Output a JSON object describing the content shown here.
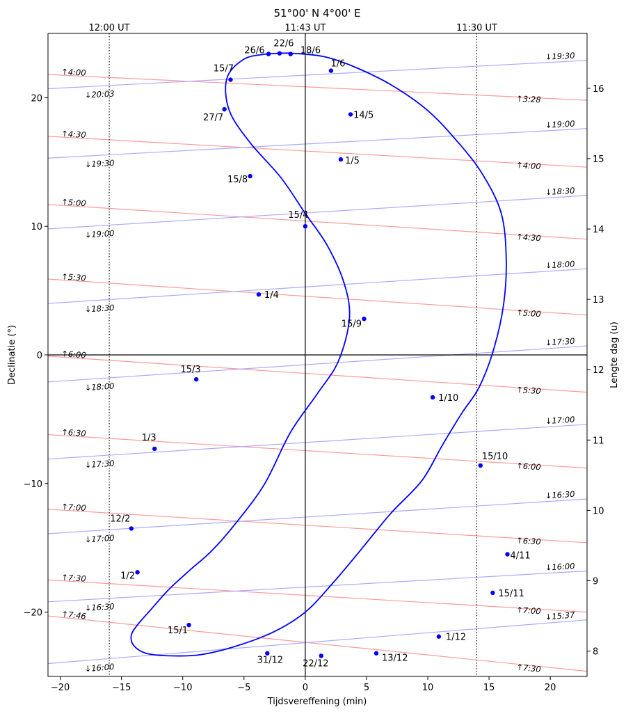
{
  "chart_data": {
    "type": "line",
    "title": "51°00' N 4°00' E",
    "xlabel": "Tijdsvereffening (min)",
    "ylabel": "Declinatie (°)",
    "y2label": "Lengte dag (u)",
    "xlim": [
      -21,
      23
    ],
    "ylim": [
      -25,
      25
    ],
    "y2lim": [
      7.64,
      16.78
    ],
    "xticks": [
      -20,
      -15,
      -10,
      -5,
      0,
      5,
      10,
      15,
      20
    ],
    "yticks": [
      -20,
      -10,
      0,
      10,
      20
    ],
    "y2ticks": [
      8,
      9,
      10,
      11,
      12,
      13,
      14,
      15,
      16
    ],
    "top_labels": [
      {
        "x": -16,
        "label": "12:00 UT"
      },
      {
        "x": 0,
        "label": "11:43 UT"
      },
      {
        "x": 14,
        "label": "11:30 UT"
      }
    ],
    "series": [
      {
        "color": "#0000ff",
        "x": [
          -3.2,
          -5.0,
          -6.4,
          -6.2,
          -4.5,
          -2.0,
          0.0,
          1.8,
          3.2,
          3.6,
          2.7,
          1.0,
          -1.2,
          -3.3,
          -5.6,
          -7.6,
          -9.5,
          -11.2,
          -12.6,
          -13.7,
          -14.2,
          -14.0,
          -13.0,
          -11.0,
          -8.5,
          -5.5,
          -2.5,
          0.0,
          2.2,
          4.5,
          7.0,
          9.5,
          11.2,
          12.8,
          14.2,
          15.4,
          16.2,
          16.4,
          16.0,
          14.5,
          12.5,
          10.0,
          7.0,
          4.0,
          1.5,
          -1.0,
          -2.2,
          -3.2
        ],
        "y": [
          23.4,
          23.0,
          21.5,
          19.0,
          16.5,
          13.8,
          11.0,
          8.5,
          5.5,
          2.8,
          -0.5,
          -3.0,
          -6.0,
          -10.0,
          -13.0,
          -15.2,
          -16.8,
          -18.3,
          -19.8,
          -21.0,
          -21.8,
          -22.6,
          -23.2,
          -23.4,
          -23.3,
          -22.6,
          -21.5,
          -20.0,
          -17.8,
          -15.2,
          -12.3,
          -9.8,
          -7.0,
          -4.5,
          -2.5,
          0.5,
          4.0,
          7.5,
          11.0,
          14.0,
          16.5,
          19.0,
          21.0,
          22.4,
          23.2,
          23.45,
          23.45,
          23.4
        ],
        "points": [
          {
            "label": "1/6",
            "x": 2.1,
            "y": 22.1
          },
          {
            "label": "14/5",
            "x": 3.7,
            "y": 18.7
          },
          {
            "label": "1/5",
            "x": 2.9,
            "y": 15.2
          },
          {
            "label": "15/4",
            "x": 0.0,
            "y": 10.0
          },
          {
            "label": "1/4",
            "x": -3.8,
            "y": 4.7
          },
          {
            "label": "15/3",
            "x": -8.9,
            "y": -1.9
          },
          {
            "label": "1/3",
            "x": -12.3,
            "y": -7.3
          },
          {
            "label": "12/2",
            "x": -14.2,
            "y": -13.5
          },
          {
            "label": "1/2",
            "x": -13.7,
            "y": -16.9
          },
          {
            "label": "15/1",
            "x": -9.5,
            "y": -21.0
          },
          {
            "label": "31/12",
            "x": -3.1,
            "y": -23.2
          },
          {
            "label": "22/12",
            "x": 1.3,
            "y": -23.4
          },
          {
            "label": "13/12",
            "x": 5.8,
            "y": -23.2
          },
          {
            "label": "1/12",
            "x": 10.9,
            "y": -21.9
          },
          {
            "label": "15/11",
            "x": 15.3,
            "y": -18.5
          },
          {
            "label": "4/11",
            "x": 16.5,
            "y": -15.5
          },
          {
            "label": "15/10",
            "x": 14.3,
            "y": -8.6
          },
          {
            "label": "1/10",
            "x": 10.4,
            "y": -3.3
          },
          {
            "label": "15/9",
            "x": 4.8,
            "y": 2.8
          },
          {
            "label": "15/8",
            "x": -4.5,
            "y": 13.9
          },
          {
            "label": "27/7",
            "x": -6.6,
            "y": 19.1
          },
          {
            "label": "15/7",
            "x": -6.1,
            "y": 21.4
          },
          {
            "label": "26/6",
            "x": -3.0,
            "y": 23.4
          },
          {
            "label": "22/6",
            "x": -2.1,
            "y": 23.45
          },
          {
            "label": "18/6",
            "x": -1.2,
            "y": 23.4
          }
        ]
      }
    ],
    "sunrise_lines": {
      "color": "#ff9999",
      "lines": [
        {
          "left_label": "↑4:00",
          "right_label": "↑3:28",
          "y_left": 21.8,
          "y_right": 19.8
        },
        {
          "left_label": "↑4:30",
          "right_label": "↑4:00",
          "y_left": 17.0,
          "y_right": 14.6
        },
        {
          "left_label": "↑5:00",
          "right_label": "↑4:30",
          "y_left": 11.7,
          "y_right": 9.0
        },
        {
          "left_label": "↑5:30",
          "right_label": "↑5:00",
          "y_left": 5.9,
          "y_right": 3.1
        },
        {
          "left_label": "↑6:00",
          "right_label": "↑5:30",
          "y_left": -0.1,
          "y_right": -2.9
        },
        {
          "left_label": "↑6:30",
          "right_label": "↑6:00",
          "y_left": -6.2,
          "y_right": -8.8
        },
        {
          "left_label": "↑7:00",
          "right_label": "↑6:30",
          "y_left": -12.0,
          "y_right": -14.6
        },
        {
          "left_label": "↑7:30",
          "right_label": "↑7:00",
          "y_left": -17.5,
          "y_right": -20.0
        },
        {
          "left_label": "↑7:46",
          "right_label": "↑7:30",
          "y_left": -20.3,
          "y_right": -24.6
        }
      ]
    },
    "sunset_lines": {
      "color": "#aaaaff",
      "lines": [
        {
          "left_label": "↓20:03",
          "right_label": "↓19:30",
          "y_left": 20.7,
          "y_right": 22.9
        },
        {
          "left_label": "↓19:30",
          "right_label": "↓19:00",
          "y_left": 15.3,
          "y_right": 17.6
        },
        {
          "left_label": "↓19:00",
          "right_label": "↓18:30",
          "y_left": 9.8,
          "y_right": 12.4
        },
        {
          "left_label": "↓18:30",
          "right_label": "↓18:00",
          "y_left": 4.0,
          "y_right": 6.7
        },
        {
          "left_label": "↓18:00",
          "right_label": "↓17:30",
          "y_left": -2.1,
          "y_right": 0.7
        },
        {
          "left_label": "↓17:30",
          "right_label": "↓17:00",
          "y_left": -8.1,
          "y_right": -5.4
        },
        {
          "left_label": "↓17:00",
          "right_label": "↓16:30",
          "y_left": -13.9,
          "y_right": -11.2
        },
        {
          "left_label": "↓16:30",
          "right_label": "↓16:00",
          "y_left": -19.2,
          "y_right": -16.8
        },
        {
          "left_label": "↓16:00",
          "right_label": "↓15:37",
          "y_left": -24.0,
          "y_right": -20.6
        }
      ]
    },
    "grid": false,
    "legend": "none"
  }
}
